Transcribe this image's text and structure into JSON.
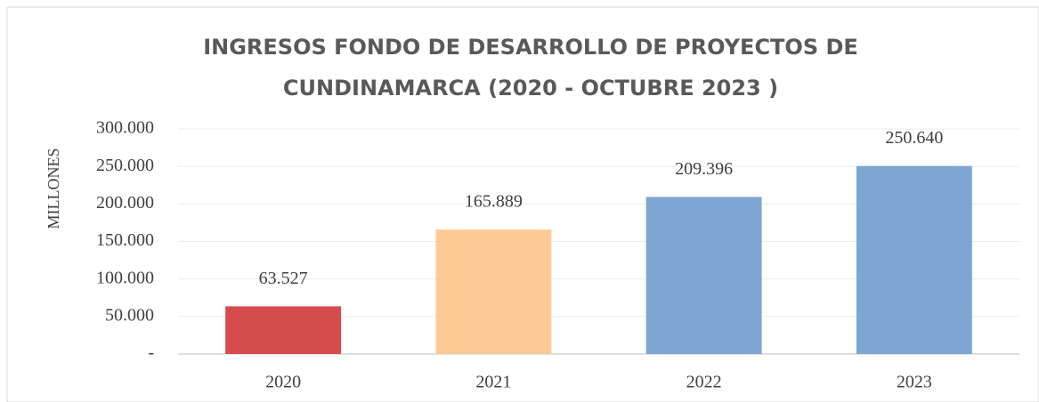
{
  "chart_data": {
    "type": "bar",
    "title": [
      "INGRESOS FONDO DE DESARROLLO DE PROYECTOS DE",
      "CUNDINAMARCA (2020 -  OCTUBRE 2023 )"
    ],
    "y_label": "MILLONES",
    "categories": [
      "2020",
      "2021",
      "2022",
      "2023"
    ],
    "values": [
      63527,
      165889,
      209396,
      250640
    ],
    "value_labels": [
      "63.527",
      "165.889",
      "209.396",
      "250.640"
    ],
    "colors": [
      "#d64b4b",
      "#fdca96",
      "#7ea6d2",
      "#7ea6d2"
    ],
    "ylim": [
      0,
      300000
    ],
    "yticks": [
      {
        "value": 0,
        "label": "-"
      },
      {
        "value": 50000,
        "label": "50.000"
      },
      {
        "value": 100000,
        "label": "100.000"
      },
      {
        "value": 150000,
        "label": "150.000"
      },
      {
        "value": 200000,
        "label": "200.000"
      },
      {
        "value": 250000,
        "label": "250.000"
      },
      {
        "value": 300000,
        "label": "300.000"
      }
    ],
    "grid": true
  }
}
